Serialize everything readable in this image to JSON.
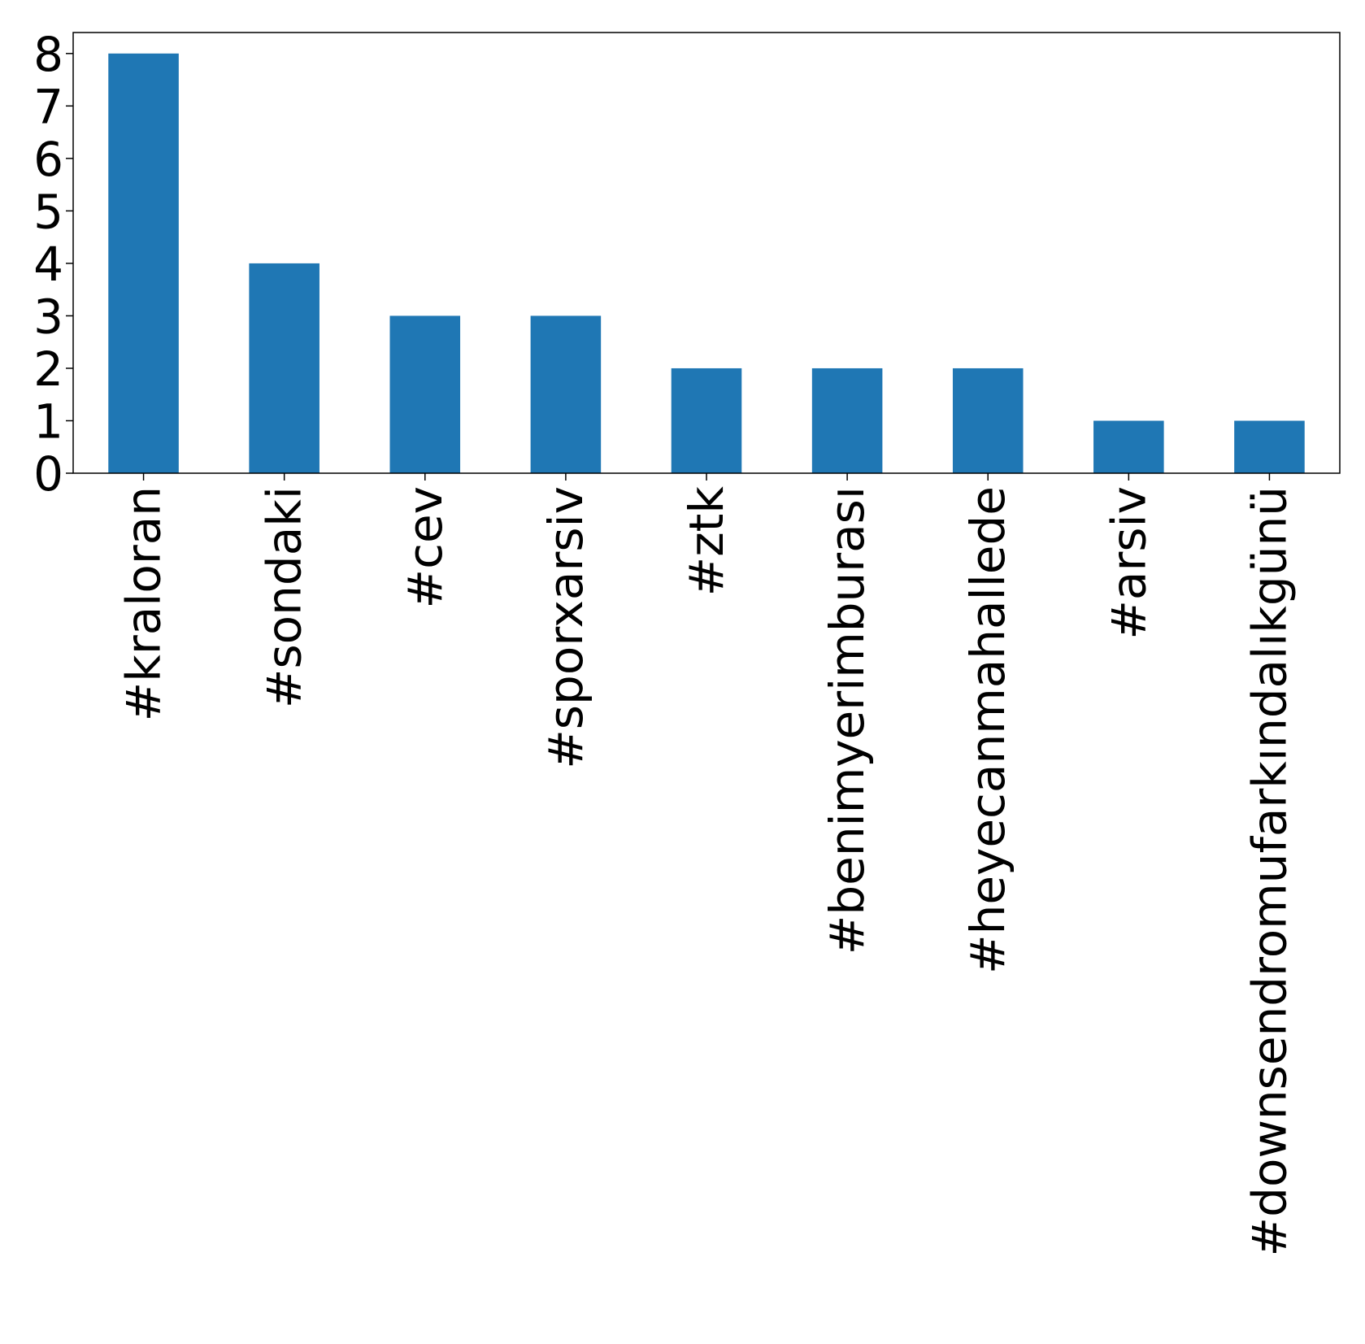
{
  "chart_data": {
    "type": "bar",
    "categories": [
      "#kraloran",
      "#sondaki",
      "#cev",
      "#sporxarsiv",
      "#ztk",
      "#benimyerimburası",
      "#heyecanmahallede",
      "#arsiv",
      "#downsendromufarkındalıkgünü"
    ],
    "values": [
      8,
      4,
      3,
      3,
      2,
      2,
      2,
      1,
      1
    ],
    "title": "",
    "xlabel": "",
    "ylabel": "",
    "ylim": [
      0,
      8.4
    ],
    "yticks": [
      0,
      1,
      2,
      3,
      4,
      5,
      6,
      7,
      8
    ],
    "bar_color": "#1f77b4",
    "grid": false,
    "legend": false
  }
}
